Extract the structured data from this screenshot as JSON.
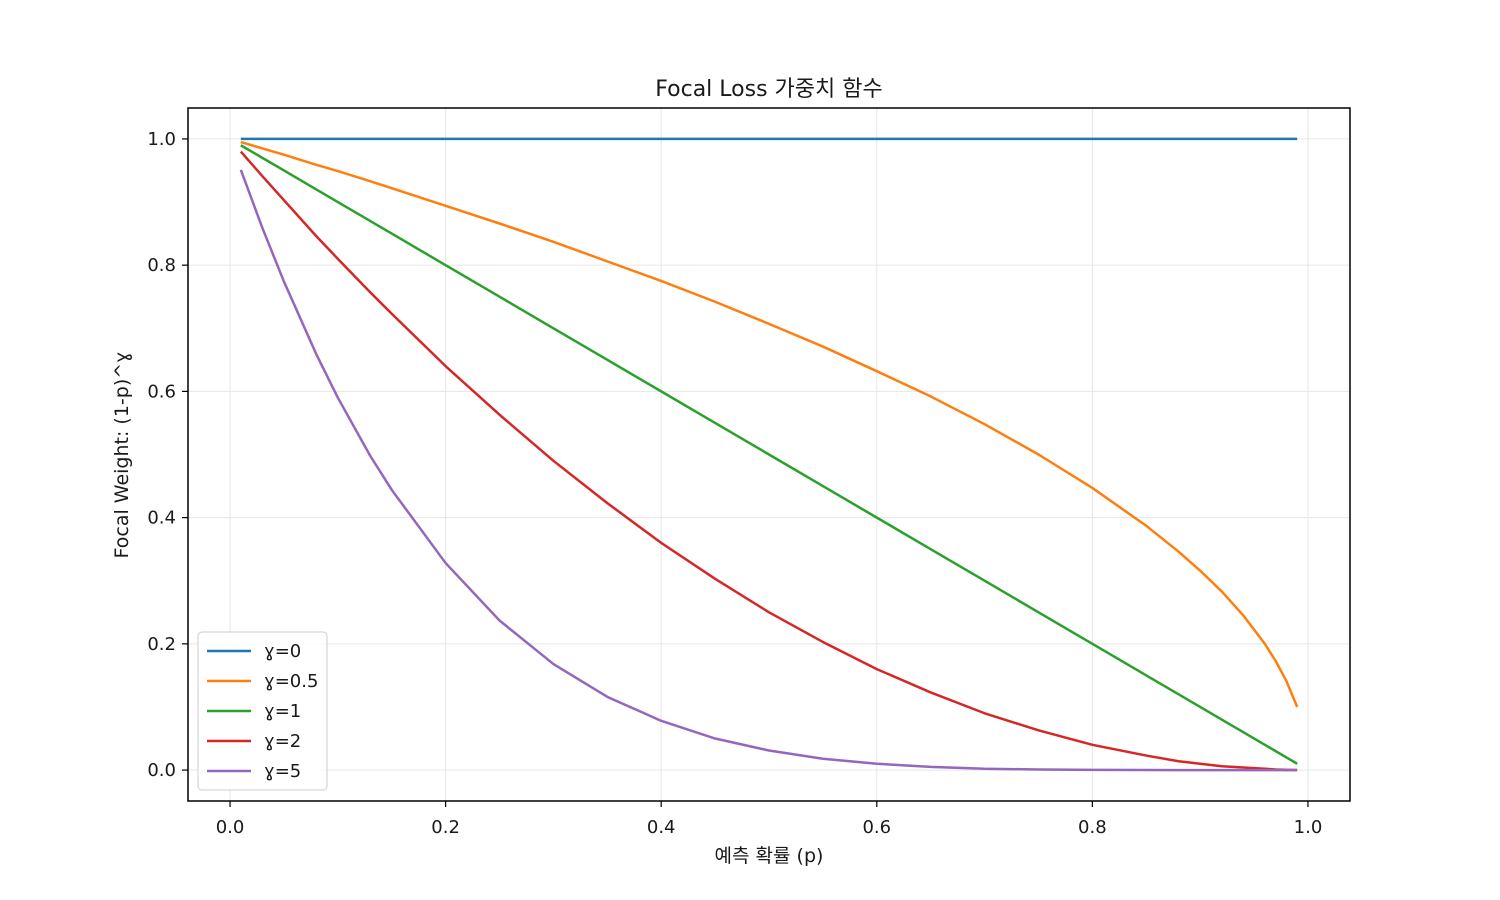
{
  "chart_data": {
    "type": "line",
    "title": "Focal Loss 가중치 함수",
    "xlabel": "예측 확률 (p)",
    "ylabel": "Focal Weight: (1-p)^ɣ",
    "xlim": [
      -0.039,
      1.039
    ],
    "ylim": [
      -0.049,
      1.049
    ],
    "xticks": [
      "0.0",
      "0.2",
      "0.4",
      "0.6",
      "0.8",
      "1.0"
    ],
    "yticks": [
      "0.0",
      "0.2",
      "0.4",
      "0.6",
      "0.8",
      "1.0"
    ],
    "grid": true,
    "legend_position": "lower-left",
    "x": [
      0.01,
      0.03,
      0.05,
      0.08,
      0.1,
      0.13,
      0.15,
      0.2,
      0.25,
      0.3,
      0.35,
      0.4,
      0.45,
      0.5,
      0.55,
      0.6,
      0.65,
      0.7,
      0.75,
      0.8,
      0.85,
      0.88,
      0.9,
      0.92,
      0.94,
      0.96,
      0.97,
      0.98,
      0.99
    ],
    "series": [
      {
        "name": "ɣ=0",
        "color": "#1f77b4",
        "values": [
          1,
          1,
          1,
          1,
          1,
          1,
          1,
          1,
          1,
          1,
          1,
          1,
          1,
          1,
          1,
          1,
          1,
          1,
          1,
          1,
          1,
          1,
          1,
          1,
          1,
          1,
          1,
          1,
          1
        ]
      },
      {
        "name": "ɣ=0.5",
        "color": "#ff7f0e",
        "values": [
          0.995,
          0.985,
          0.975,
          0.959,
          0.949,
          0.933,
          0.922,
          0.894,
          0.866,
          0.837,
          0.806,
          0.775,
          0.742,
          0.707,
          0.671,
          0.632,
          0.592,
          0.548,
          0.5,
          0.447,
          0.387,
          0.346,
          0.316,
          0.283,
          0.245,
          0.2,
          0.173,
          0.141,
          0.1
        ]
      },
      {
        "name": "ɣ=1",
        "color": "#2ca02c",
        "values": [
          0.99,
          0.97,
          0.95,
          0.92,
          0.9,
          0.87,
          0.85,
          0.8,
          0.75,
          0.7,
          0.65,
          0.6,
          0.55,
          0.5,
          0.45,
          0.4,
          0.35,
          0.3,
          0.25,
          0.2,
          0.15,
          0.12,
          0.1,
          0.08,
          0.06,
          0.04,
          0.03,
          0.02,
          0.01
        ]
      },
      {
        "name": "ɣ=2",
        "color": "#d62728",
        "values": [
          0.98,
          0.941,
          0.903,
          0.846,
          0.81,
          0.757,
          0.723,
          0.64,
          0.563,
          0.49,
          0.423,
          0.36,
          0.303,
          0.25,
          0.203,
          0.16,
          0.123,
          0.09,
          0.063,
          0.04,
          0.023,
          0.014,
          0.01,
          0.006,
          0.004,
          0.002,
          0.001,
          0.0004,
          0.0001
        ]
      },
      {
        "name": "ɣ=5",
        "color": "#9467bd",
        "values": [
          0.951,
          0.859,
          0.774,
          0.659,
          0.59,
          0.498,
          0.444,
          0.328,
          0.237,
          0.168,
          0.116,
          0.078,
          0.05,
          0.031,
          0.018,
          0.01,
          0.005,
          0.002,
          0.001,
          0.0003,
          0.0001,
          0.0,
          0.0,
          0.0,
          0.0,
          0.0,
          0.0,
          0.0,
          0.0
        ]
      }
    ]
  }
}
